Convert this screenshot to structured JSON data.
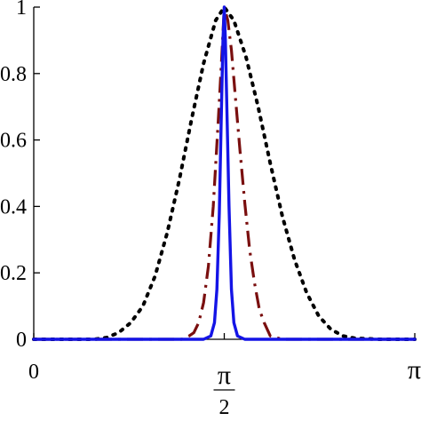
{
  "chart_data": {
    "type": "line",
    "title": "",
    "xlabel": "",
    "ylabel": "",
    "xlim": [
      0,
      3.14159
    ],
    "ylim": [
      0,
      1
    ],
    "grid": false,
    "legend": "none",
    "x_ticks": [
      {
        "value": 0,
        "label": "0"
      },
      {
        "value": 1.5708,
        "label": "π",
        "denominator": "2"
      },
      {
        "value": 3.14159,
        "label": "π"
      }
    ],
    "y_ticks": [
      {
        "value": 0,
        "label": "0"
      },
      {
        "value": 0.2,
        "label": "0.2"
      },
      {
        "value": 0.4,
        "label": "0.4"
      },
      {
        "value": 0.6,
        "label": "0.6"
      },
      {
        "value": 0.8,
        "label": "0.8"
      },
      {
        "value": 1,
        "label": "1"
      }
    ],
    "series": [
      {
        "style": "dotted",
        "color": "#000000",
        "x": [
          0,
          0.3,
          0.5,
          0.6,
          0.7,
          0.8,
          0.9,
          1.0,
          1.1,
          1.2,
          1.3,
          1.4,
          1.5,
          1.5708,
          1.65,
          1.75,
          1.85,
          1.95,
          2.05,
          2.15,
          2.25,
          2.35,
          2.45,
          2.55,
          2.65,
          2.85,
          3.14159
        ],
        "y": [
          0,
          0.0,
          0.0,
          0.005,
          0.02,
          0.05,
          0.1,
          0.19,
          0.32,
          0.48,
          0.66,
          0.83,
          0.96,
          1.0,
          0.96,
          0.85,
          0.7,
          0.53,
          0.37,
          0.24,
          0.14,
          0.07,
          0.03,
          0.01,
          0.003,
          0,
          0
        ]
      },
      {
        "style": "dash-dot",
        "color": "#7a0f0f",
        "x": [
          0,
          1.1,
          1.22,
          1.28,
          1.32,
          1.36,
          1.4,
          1.44,
          1.48,
          1.52,
          1.55,
          1.5708,
          1.6,
          1.63,
          1.66,
          1.7,
          1.74,
          1.78,
          1.82,
          1.86,
          1.9,
          1.95,
          2.05,
          3.14159
        ],
        "y": [
          0,
          0,
          0.0,
          0.01,
          0.02,
          0.05,
          0.11,
          0.22,
          0.4,
          0.65,
          0.85,
          1.0,
          0.96,
          0.87,
          0.74,
          0.57,
          0.41,
          0.27,
          0.17,
          0.09,
          0.05,
          0.01,
          0,
          0
        ]
      },
      {
        "style": "solid",
        "color": "#1414e6",
        "x": [
          0,
          1.4,
          1.46,
          1.49,
          1.51,
          1.53,
          1.545,
          1.56,
          1.5708,
          1.58,
          1.595,
          1.61,
          1.63,
          1.65,
          1.68,
          1.74,
          3.14159
        ],
        "y": [
          0,
          0,
          0.01,
          0.05,
          0.15,
          0.38,
          0.65,
          0.9,
          1.0,
          0.9,
          0.65,
          0.4,
          0.15,
          0.05,
          0.01,
          0,
          0
        ]
      }
    ]
  }
}
